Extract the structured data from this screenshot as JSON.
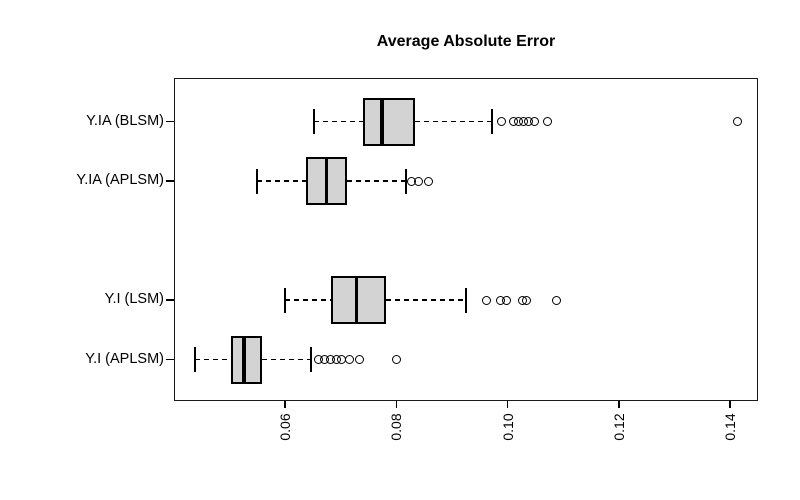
{
  "chart_data": {
    "type": "boxplot",
    "orientation": "horizontal",
    "title": "Average Absolute Error",
    "categories": [
      "Y.IA (BLSM)",
      "Y.IA (APLSM)",
      "Y.I (LSM)",
      "Y.I (APLSM)"
    ],
    "positions": [
      5,
      4,
      2,
      1
    ],
    "series": [
      {
        "name": "Y.IA (BLSM)",
        "whisker_low": 0.0652,
        "q1": 0.074,
        "median": 0.0774,
        "q3": 0.0834,
        "whisker_high": 0.0972,
        "outliers": [
          0.0988,
          0.101,
          0.1019,
          0.1028,
          0.1037,
          0.1048,
          0.1071,
          0.1413
        ]
      },
      {
        "name": "Y.IA (APLSM)",
        "whisker_low": 0.055,
        "q1": 0.0638,
        "median": 0.0674,
        "q3": 0.0711,
        "whisker_high": 0.0818,
        "outliers": [
          0.0827,
          0.0839,
          0.0857
        ]
      },
      {
        "name": "Y.I (LSM)",
        "whisker_low": 0.06,
        "q1": 0.0683,
        "median": 0.0728,
        "q3": 0.0782,
        "whisker_high": 0.0925,
        "outliers": [
          0.0961,
          0.0987,
          0.0997,
          0.1026,
          0.1033,
          0.1087
        ]
      },
      {
        "name": "Y.I (APLSM)",
        "whisker_low": 0.0438,
        "q1": 0.0503,
        "median": 0.0526,
        "q3": 0.0559,
        "whisker_high": 0.0647,
        "outliers": [
          0.0659,
          0.067,
          0.0681,
          0.0692,
          0.0702,
          0.0715,
          0.0733,
          0.08
        ]
      }
    ],
    "x_ticks": [
      0.06,
      0.08,
      0.1,
      0.12,
      0.14
    ],
    "x_tick_labels": [
      "0.06",
      "0.08",
      "0.10",
      "0.12",
      "0.14"
    ],
    "xlim": [
      0.04,
      0.145
    ],
    "box_fill": "#d3d3d3",
    "line_color": "#000000",
    "grid": false,
    "legend": false,
    "x_tick_label_rotation": -90
  }
}
